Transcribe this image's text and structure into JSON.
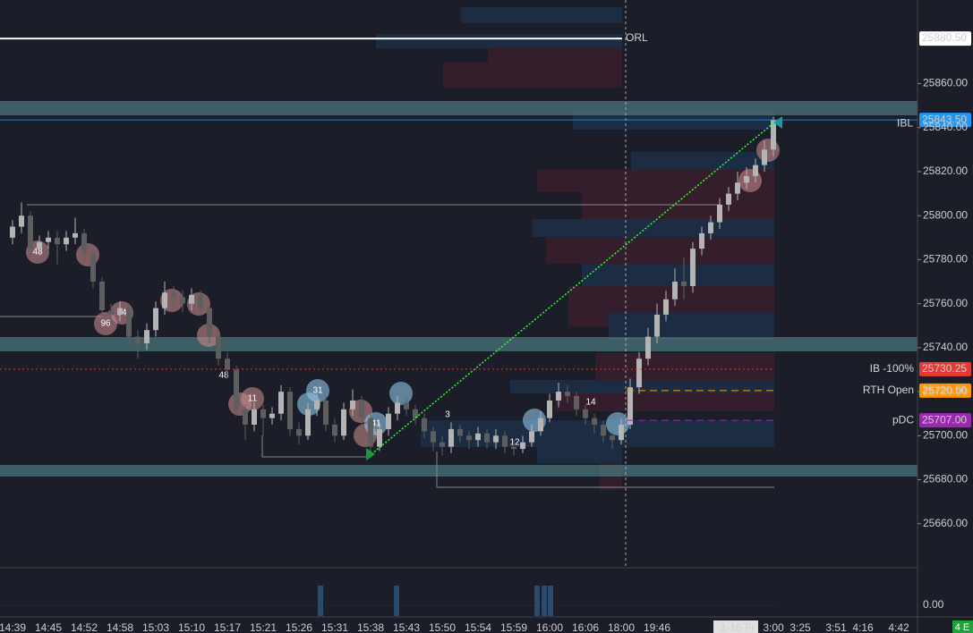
{
  "chart_data": {
    "type": "candlestick",
    "categories": [
      "14:39",
      null,
      null,
      null,
      "14:45",
      null,
      null,
      null,
      "14:52",
      null,
      null,
      null,
      "14:58",
      null,
      null,
      null,
      "15:03",
      null,
      null,
      null,
      "15:10",
      null,
      null,
      null,
      "15:17",
      null,
      null,
      null,
      "15:21",
      null,
      null,
      null,
      "15:26",
      null,
      null,
      null,
      "15:31",
      null,
      null,
      null,
      "15:38",
      null,
      null,
      null,
      "15:43",
      null,
      null,
      null,
      "15:50",
      null,
      null,
      null,
      "15:54",
      null,
      null,
      null,
      "15:59",
      null,
      null,
      null,
      "16:00",
      null,
      null,
      null,
      "16:06",
      null,
      null,
      null,
      "18:00",
      null,
      null,
      null,
      "19:46",
      null,
      null,
      null,
      null,
      null,
      null,
      null,
      null,
      "1-16 Fr",
      null,
      null,
      null,
      "3:00",
      null,
      null,
      "3:25",
      null,
      null,
      null,
      "3:51",
      null,
      null,
      "4:16",
      null,
      null,
      null,
      "4:42"
    ],
    "open": [
      25790,
      25795,
      25800,
      25785,
      25788,
      25790,
      25787,
      25790,
      25792,
      25783,
      25770,
      25757,
      25755,
      25758,
      25745,
      25742,
      25748,
      25758,
      25765,
      25763,
      25760,
      25764,
      25758,
      25745,
      25735,
      25730,
      25712,
      25705,
      25712,
      25708,
      25710,
      25720,
      25703,
      25700,
      25712,
      25716,
      25705,
      25700,
      25712,
      25716,
      25708,
      25695,
      25703,
      25710,
      25715,
      25712,
      25708,
      25702,
      25697,
      25695,
      25703,
      25700,
      25698,
      25701,
      25697,
      25700,
      25695,
      25694,
      25697,
      25702,
      25708,
      25716,
      25720,
      25718,
      25712,
      25708,
      25705,
      25700,
      25698,
      25705,
      25722,
      25735,
      25745,
      25755,
      25762,
      25770,
      25768,
      25785,
      25792,
      25797,
      25805,
      25810,
      25815,
      25818,
      25823,
      25830,
      null,
      null,
      null,
      null,
      null,
      null,
      null,
      null,
      null,
      null,
      null,
      null,
      null,
      null
    ],
    "high": [
      25798,
      25806,
      25802,
      25791,
      25793,
      25793,
      25793,
      25799,
      25794,
      25785,
      25772,
      25760,
      25761,
      25760,
      25748,
      25751,
      25761,
      25770,
      25768,
      25766,
      25767,
      25766,
      25760,
      25747,
      25738,
      25732,
      25714,
      25715,
      25714,
      25713,
      25723,
      25722,
      25706,
      25715,
      25719,
      25718,
      25708,
      25715,
      25721,
      25718,
      25710,
      25706,
      25713,
      25718,
      25717,
      25714,
      25710,
      25704,
      25700,
      25706,
      25705,
      25702,
      25704,
      25703,
      25703,
      25702,
      25698,
      25700,
      25705,
      25711,
      25719,
      25724,
      25723,
      25720,
      25714,
      25710,
      25707,
      25702,
      25708,
      25726,
      25738,
      25749,
      25760,
      25766,
      25776,
      25781,
      25788,
      25795,
      25800,
      25808,
      25813,
      25820,
      25822,
      25826,
      25834,
      25845,
      null,
      null,
      null,
      null,
      null,
      null,
      null,
      null,
      null,
      null,
      null,
      null,
      null,
      null
    ],
    "low": [
      25787,
      25792,
      25782,
      25782,
      25785,
      25778,
      25784,
      25787,
      25780,
      25767,
      25754,
      25750,
      25752,
      25740,
      25735,
      25739,
      25745,
      25755,
      25759,
      25756,
      25757,
      25755,
      25742,
      25732,
      25726,
      25709,
      25698,
      25702,
      25700,
      25705,
      25707,
      25700,
      25696,
      25698,
      25709,
      25702,
      25697,
      25698,
      25709,
      25704,
      25691,
      25693,
      25700,
      25707,
      25709,
      25705,
      25699,
      25693,
      25691,
      25692,
      25697,
      25694,
      25695,
      25694,
      25694,
      25692,
      25691,
      25692,
      25695,
      25700,
      25706,
      25713,
      25715,
      25709,
      25705,
      25701,
      25697,
      25694,
      25696,
      25703,
      25719,
      25732,
      25742,
      25752,
      25759,
      25762,
      25765,
      25782,
      25789,
      25794,
      25802,
      25807,
      25812,
      25815,
      25820,
      25827,
      null,
      null,
      null,
      null,
      null,
      null,
      null,
      null,
      null,
      null,
      null,
      null,
      null,
      null
    ],
    "close": [
      25795,
      25800,
      25785,
      25788,
      25790,
      25787,
      25790,
      25792,
      25783,
      25770,
      25757,
      25755,
      25758,
      25745,
      25742,
      25748,
      25758,
      25765,
      25763,
      25760,
      25764,
      25758,
      25745,
      25735,
      25730,
      25712,
      25705,
      25712,
      25708,
      25710,
      25720,
      25703,
      25700,
      25712,
      25716,
      25705,
      25700,
      25712,
      25716,
      25708,
      25695,
      25703,
      25710,
      25715,
      25712,
      25708,
      25702,
      25697,
      25695,
      25703,
      25700,
      25698,
      25701,
      25697,
      25700,
      25695,
      25694,
      25697,
      25702,
      25708,
      25716,
      25720,
      25718,
      25712,
      25708,
      25705,
      25700,
      25698,
      25705,
      25722,
      25735,
      25745,
      25755,
      25762,
      25770,
      25768,
      25785,
      25792,
      25797,
      25805,
      25810,
      25815,
      25818,
      25823,
      25830,
      25843.5,
      null,
      null,
      null,
      null,
      null,
      null,
      null,
      null,
      null,
      null,
      null,
      null,
      null,
      null
    ],
    "up_color": "#b4b4b4",
    "down_color": "#5e5e5e",
    "ylim": [
      25640,
      25898
    ],
    "yticks": [
      {
        "value": 25660,
        "label": "25660.00"
      },
      {
        "value": 25680,
        "label": "25680.00"
      },
      {
        "value": 25700,
        "label": "25700.00"
      },
      {
        "value": 25720,
        "label": "25720.00"
      },
      {
        "value": 25740,
        "label": "25740.00"
      },
      {
        "value": 25760,
        "label": "25760.00"
      },
      {
        "value": 25780,
        "label": "25780.00"
      },
      {
        "value": 25800,
        "label": "25800.00"
      },
      {
        "value": 25820,
        "label": "25820.00"
      },
      {
        "value": 25840,
        "label": "25840.00"
      },
      {
        "value": 25860,
        "label": "25860.00"
      }
    ],
    "levels": [
      {
        "name": "ORL",
        "value": 25880.5,
        "value_label": "25880.50",
        "color": "#ffffff"
      },
      {
        "name": "IBL",
        "value": 25843.5,
        "value_label": "25843.50",
        "color": "#2196f3"
      },
      {
        "name": "IB -100%",
        "value": 25730.25,
        "value_label": "25730.25",
        "color": "#e53935"
      },
      {
        "name": "RTH Open",
        "value": 25720.5,
        "value_label": "25720.50",
        "color": "#ff9800"
      },
      {
        "name": "pDC",
        "value": 25707,
        "value_label": "25707.00",
        "color": "#9c27b0"
      }
    ],
    "annotations": [
      "48",
      "96",
      "34",
      "48",
      "11",
      "31",
      "41",
      "3",
      "12",
      "14"
    ],
    "volume_yticks": [
      {
        "value": 0,
        "label": "0.00"
      }
    ],
    "corner_badge": "4 E"
  }
}
